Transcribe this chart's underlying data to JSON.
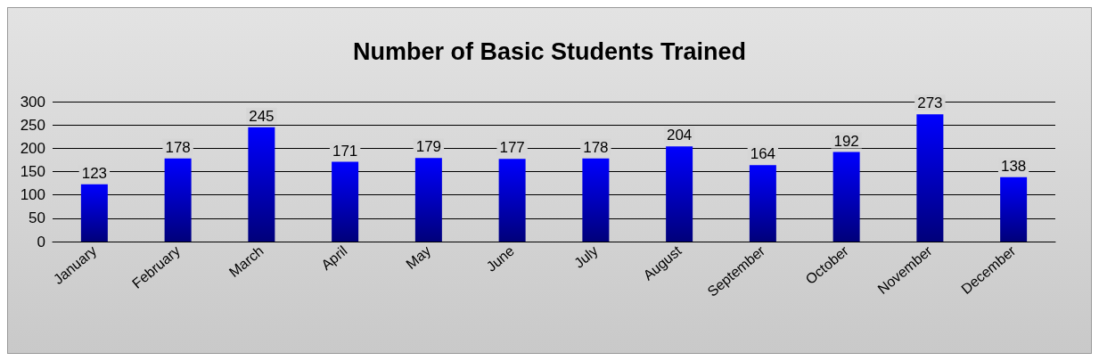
{
  "chart_data": {
    "type": "bar",
    "title": "Number of Basic Students Trained",
    "categories": [
      "January",
      "February",
      "March",
      "April",
      "May",
      "June",
      "July",
      "August",
      "September",
      "October",
      "November",
      "December"
    ],
    "values": [
      123,
      178,
      245,
      171,
      179,
      177,
      178,
      204,
      164,
      192,
      273,
      138
    ],
    "color": "#0000ff",
    "ylim": [
      0,
      300
    ],
    "yticks": [
      0,
      50,
      100,
      150,
      200,
      250,
      300
    ],
    "grid": "y",
    "data_labels": true
  }
}
